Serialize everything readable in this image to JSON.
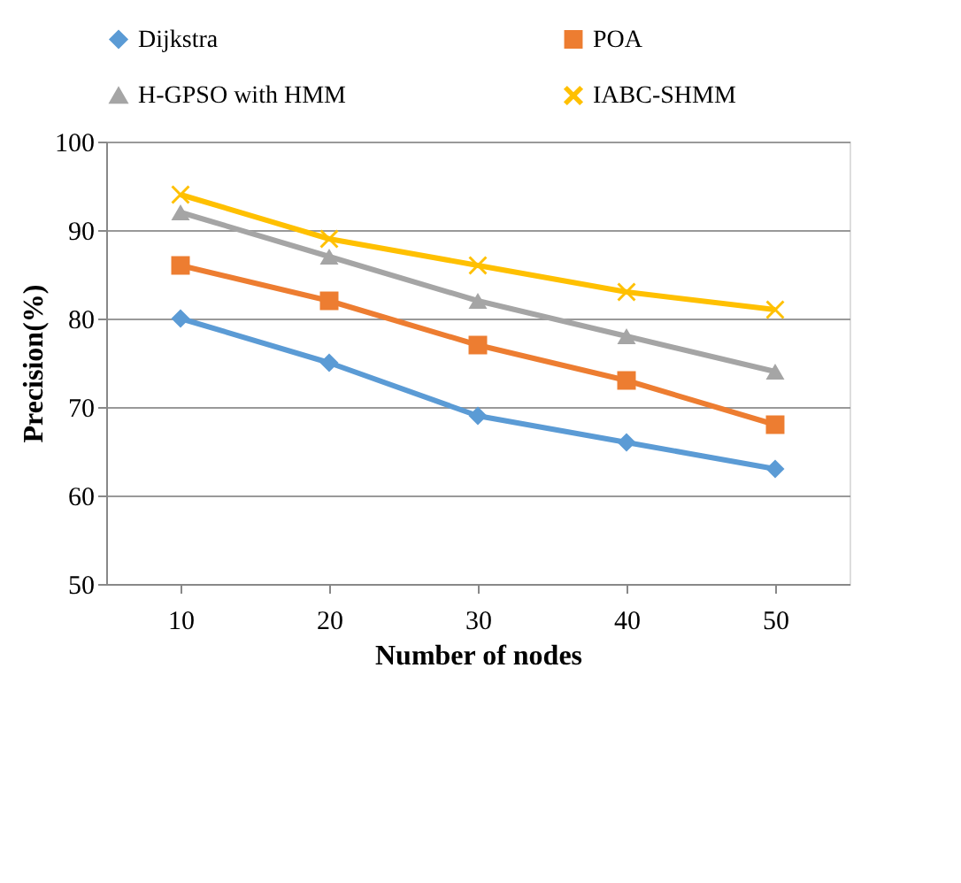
{
  "chart_data": {
    "type": "line",
    "xlabel": "Number of nodes",
    "ylabel": "Precision(%)",
    "categories": [
      "10",
      "20",
      "30",
      "40",
      "50"
    ],
    "ylim": [
      50,
      100
    ],
    "yticks": [
      50,
      60,
      70,
      80,
      90,
      100
    ],
    "grid": "y",
    "legend": "top",
    "line_style": "solid",
    "series": [
      {
        "name": "Dijkstra",
        "color": "#5b9bd5",
        "marker": "diamond",
        "values": [
          80,
          75,
          69,
          66,
          63
        ]
      },
      {
        "name": "POA",
        "color": "#ed7d31",
        "marker": "square",
        "values": [
          86,
          82,
          77,
          73,
          68
        ]
      },
      {
        "name": "H-GPSO with HMM",
        "color": "#a5a5a5",
        "marker": "triangle",
        "values": [
          92,
          87,
          82,
          78,
          74
        ]
      },
      {
        "name": "IABC-SHMM",
        "color": "#ffc000",
        "marker": "cross",
        "values": [
          94,
          89,
          86,
          83,
          81
        ]
      }
    ]
  }
}
